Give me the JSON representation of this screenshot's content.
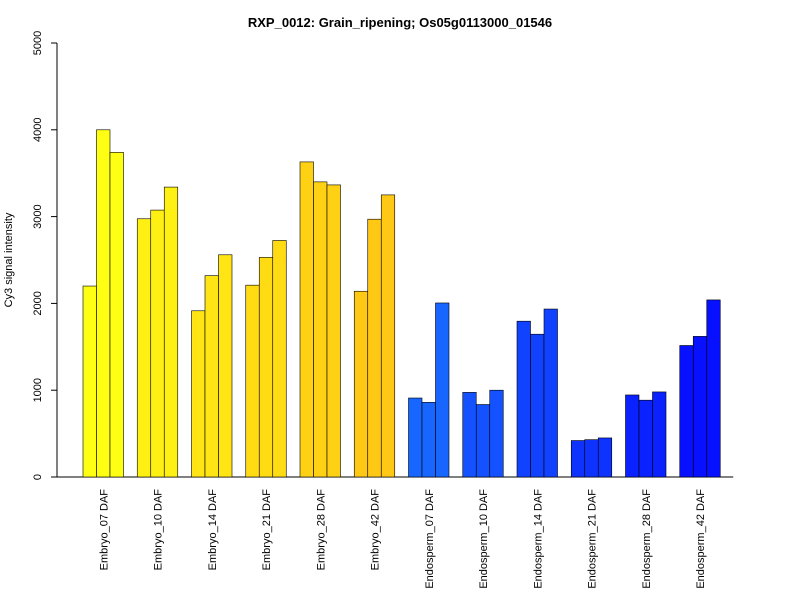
{
  "chart_data": {
    "type": "bar",
    "title": "RXP_0012: Grain_ripening; Os05g0113000_01546",
    "xlabel": "",
    "ylabel": "Cy3 signal intensity",
    "ylim": [
      0,
      5000
    ],
    "yticks": [
      0,
      1000,
      2000,
      3000,
      4000,
      5000
    ],
    "grid": false,
    "legend": "none",
    "categories": [
      "Embryo_07 DAF",
      "Embryo_10 DAF",
      "Embryo_14 DAF",
      "Embryo_21 DAF",
      "Embryo_28 DAF",
      "Embryo_42 DAF",
      "Endosperm_07 DAF",
      "Endosperm_10 DAF",
      "Endosperm_14 DAF",
      "Endosperm_21 DAF",
      "Endosperm_28 DAF",
      "Endosperm_42 DAF"
    ],
    "groups": [
      {
        "values": [
          2200,
          4000,
          3740
        ],
        "color": "#FFFF14"
      },
      {
        "values": [
          2975,
          3075,
          3340
        ],
        "color": "#FFF014"
      },
      {
        "values": [
          1915,
          2320,
          2560
        ],
        "color": "#FFE514"
      },
      {
        "values": [
          2210,
          2530,
          2725
        ],
        "color": "#FFDB14"
      },
      {
        "values": [
          3630,
          3400,
          3365
        ],
        "color": "#FFD114"
      },
      {
        "values": [
          2140,
          2970,
          3250
        ],
        "color": "#FFC814"
      },
      {
        "values": [
          910,
          860,
          2005
        ],
        "color": "#1766FF"
      },
      {
        "values": [
          975,
          835,
          1000
        ],
        "color": "#1452FF"
      },
      {
        "values": [
          1795,
          1645,
          1935
        ],
        "color": "#1142FF"
      },
      {
        "values": [
          420,
          430,
          450
        ],
        "color": "#0E33FF"
      },
      {
        "values": [
          945,
          885,
          980
        ],
        "color": "#0A22FF"
      },
      {
        "values": [
          1515,
          1620,
          2040
        ],
        "color": "#0710FF"
      }
    ]
  }
}
